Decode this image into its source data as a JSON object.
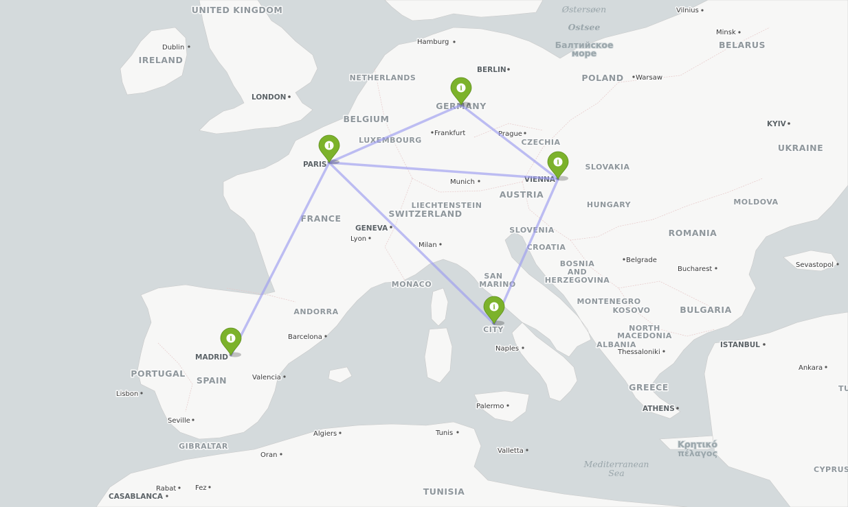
{
  "map": {
    "countries": [
      "UNITED KINGDOM",
      "IRELAND",
      "NETHERLANDS",
      "BELGIUM",
      "LUXEMBOURG",
      "GERMANY",
      "POLAND",
      "BELARUS",
      "CZECHIA",
      "SLOVAKIA",
      "UKRAINE",
      "AUSTRIA",
      "LIECHTENSTEIN",
      "SWITZERLAND",
      "FRANCE",
      "HUNGARY",
      "MOLDOVA",
      "ROMANIA",
      "SLOVENIA",
      "CROATIA",
      "BOSNIA",
      "AND",
      "HERZEGOVINA",
      "SAN",
      "MARINO",
      "MONACO",
      "ANDORRA",
      "MONTENEGRO",
      "KOSOVO",
      "NORTH",
      "MACEDONIA",
      "ALBANIA",
      "BULGARIA",
      "PORTUGAL",
      "SPAIN",
      "GREECE",
      "GIBRALTAR",
      "TUNISIA",
      "CITY"
    ],
    "capitals": [
      "LONDON",
      "BERLIN",
      "PARIS",
      "VIENNA",
      "MADRID",
      "GENEVA",
      "ATHENS",
      "KYIV",
      "ISTANBUL"
    ],
    "cities": [
      "Dublin",
      "Hamburg",
      "Vilnius",
      "Minsk",
      "Warsaw",
      "Frankfurt",
      "Prague",
      "Munich",
      "Lyon",
      "Milan",
      "Belgrade",
      "Bucharest",
      "Sevastopol",
      "Barcelona",
      "Valencia",
      "Lisbon",
      "Seville",
      "Naples",
      "Thessaloniki",
      "Ankara",
      "Palermo",
      "Tunis",
      "Valletta",
      "Algiers",
      "Oran",
      "Rabat",
      "Fez",
      "CASABLANCA"
    ],
    "seas": [
      "Østersøen",
      "Ostsee",
      "Балтийское",
      "море",
      "Mediterranean",
      "Sea",
      "Κρητικό",
      "πέλαγος"
    ],
    "markers": [
      {
        "name": "Germany",
        "icon": "info-icon",
        "glyph": "i",
        "color": "#7cb22b"
      },
      {
        "name": "Paris",
        "icon": "info-icon",
        "glyph": "i",
        "color": "#7cb22b"
      },
      {
        "name": "Vienna",
        "icon": "info-icon",
        "glyph": "i",
        "color": "#7cb22b"
      },
      {
        "name": "Rome",
        "icon": "info-icon",
        "glyph": "i",
        "color": "#7cb22b"
      },
      {
        "name": "Madrid",
        "icon": "info-icon",
        "glyph": "i",
        "color": "#7cb22b"
      }
    ],
    "route_color": "#9c9cf0",
    "route": [
      "Paris→Germany",
      "Germany→Vienna",
      "Paris→Vienna",
      "Vienna→Rome",
      "Paris→Rome",
      "Paris→Madrid"
    ]
  }
}
